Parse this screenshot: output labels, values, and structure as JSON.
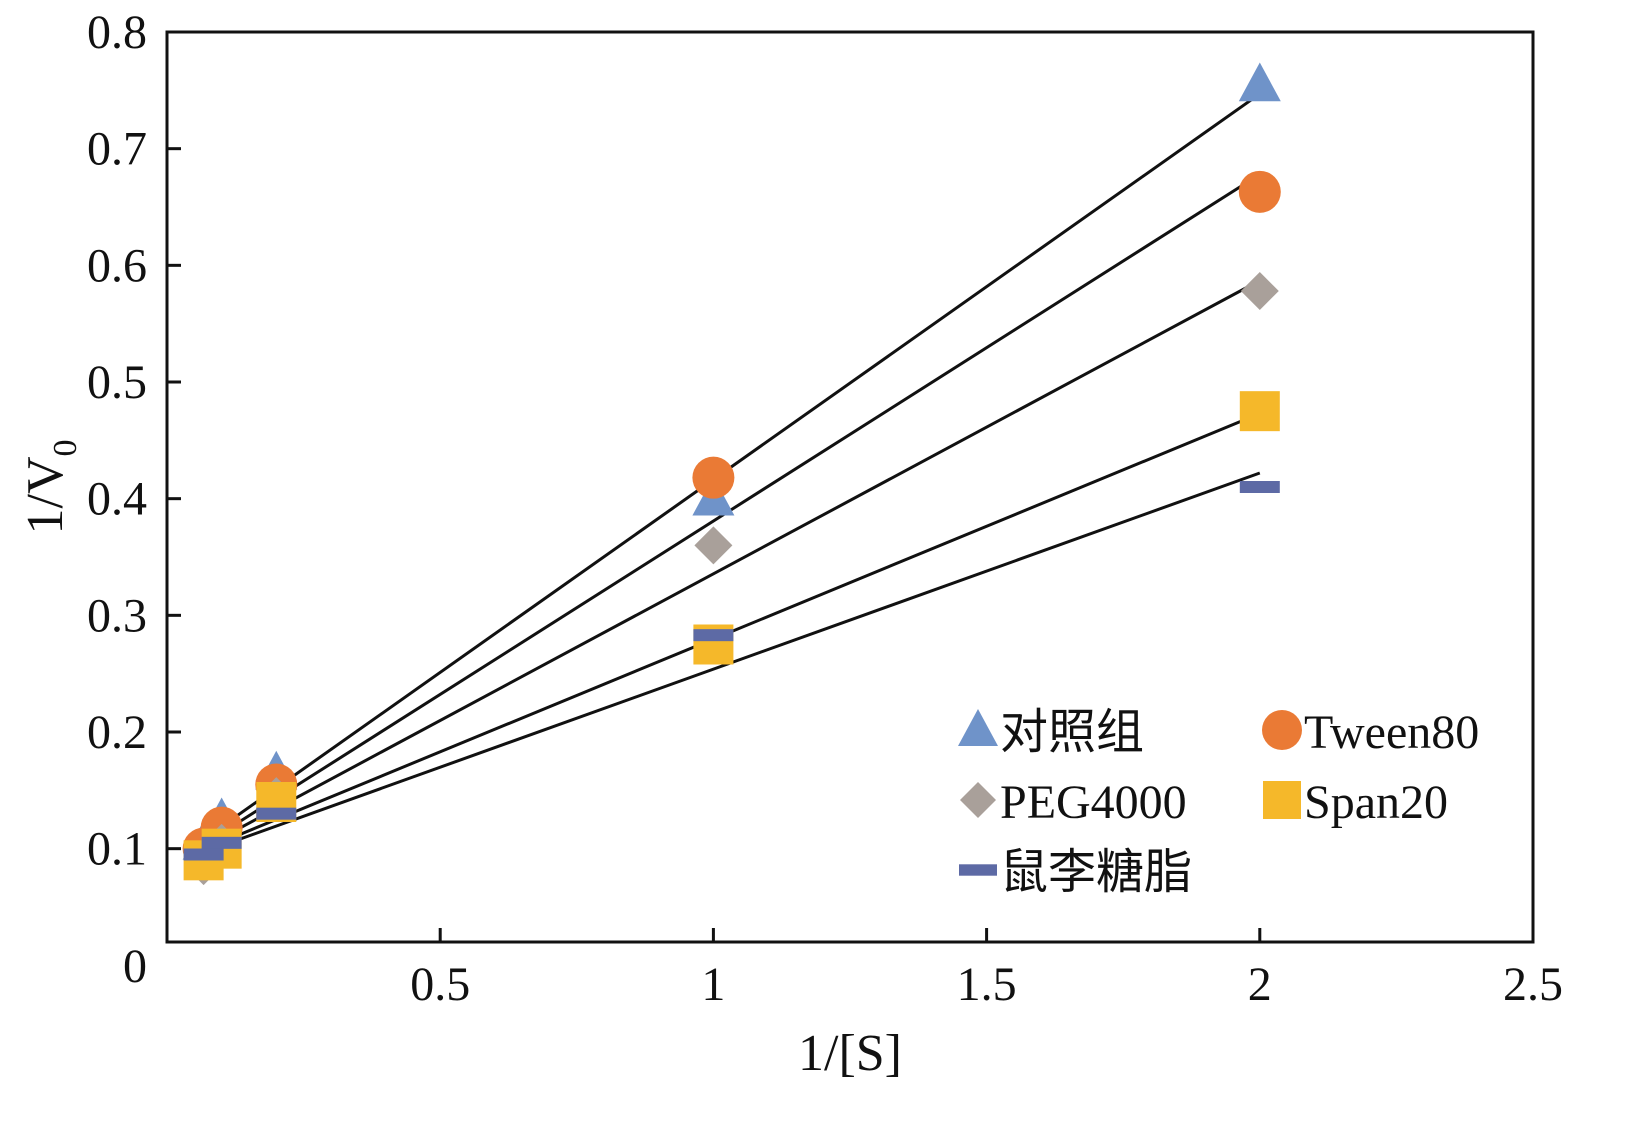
{
  "chart_data": {
    "type": "scatter",
    "title": "",
    "xlabel": "1/[S]",
    "ylabel": "1/V0",
    "ylabel_parts": {
      "main": "1/V",
      "sub": "0"
    },
    "xlim": [
      0,
      2.5
    ],
    "ylim": [
      0.02,
      0.8
    ],
    "x_ticks": [
      0.5,
      1,
      1.5,
      2,
      2.5
    ],
    "x_tick_labels": [
      "0.5",
      "1",
      "1.5",
      "2",
      "2.5"
    ],
    "y_ticks": [
      0.1,
      0.2,
      0.3,
      0.4,
      0.5,
      0.6,
      0.7,
      0.8
    ],
    "y_tick_labels": [
      "0.1",
      "0.2",
      "0.3",
      "0.4",
      "0.5",
      "0.6",
      "0.7",
      "0.8"
    ],
    "origin_label": "0",
    "grid": false,
    "legend_position": "bottom-right",
    "series": [
      {
        "name": "对照组",
        "marker": "triangle",
        "color": "#6f93c9",
        "x": [
          0.067,
          0.1,
          0.2,
          1,
          2
        ],
        "y": [
          0.105,
          0.125,
          0.165,
          0.4,
          0.755
        ],
        "fit": {
          "x": [
            0.055,
            2
          ],
          "y": [
            0.104,
            0.747
          ]
        }
      },
      {
        "name": "Tween80",
        "marker": "circle",
        "color": "#ea7a35",
        "x": [
          0.067,
          0.1,
          0.2,
          1,
          2
        ],
        "y": [
          0.1,
          0.118,
          0.155,
          0.418,
          0.663
        ],
        "fit": {
          "x": [
            0.055,
            2
          ],
          "y": [
            0.1,
            0.678
          ]
        }
      },
      {
        "name": "PEG4000",
        "marker": "diamond",
        "color": "#a9a09a",
        "x": [
          0.067,
          0.1,
          0.2,
          1,
          2
        ],
        "y": [
          0.085,
          0.105,
          0.145,
          0.36,
          0.578
        ],
        "fit": {
          "x": [
            0.055,
            2
          ],
          "y": [
            0.098,
            0.587
          ]
        }
      },
      {
        "name": "Span20",
        "marker": "square",
        "color": "#f5b82a",
        "x": [
          0.067,
          0.1,
          0.2,
          1,
          2
        ],
        "y": [
          0.09,
          0.1,
          0.14,
          0.275,
          0.475
        ],
        "fit": {
          "x": [
            0.055,
            2
          ],
          "y": [
            0.097,
            0.473
          ]
        }
      },
      {
        "name": "鼠李糖脂",
        "marker": "dash",
        "color": "#5d6aa5",
        "x": [
          0.067,
          0.1,
          0.2,
          1,
          2
        ],
        "y": [
          0.095,
          0.105,
          0.13,
          0.283,
          0.41
        ],
        "fit": {
          "x": [
            0.055,
            2
          ],
          "y": [
            0.095,
            0.422
          ]
        }
      }
    ]
  }
}
